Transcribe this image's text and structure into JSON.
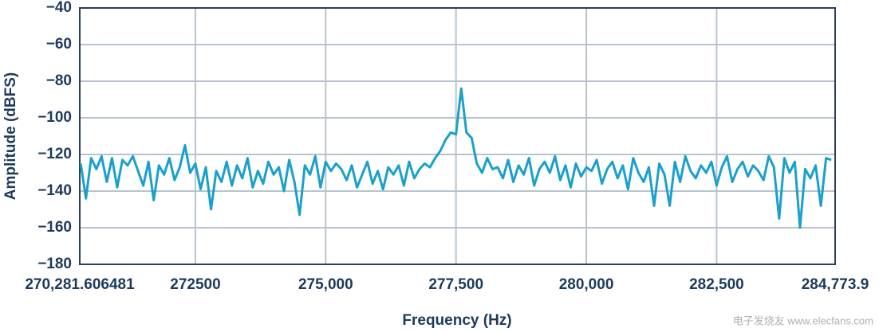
{
  "chart_data": {
    "type": "line",
    "x_label": "Frequency (Hz)",
    "y_label": "Amplitude (dBFS)",
    "watermark": "电子发烧友 www.elecfans.com",
    "xlim": [
      270281.606481,
      284773.9
    ],
    "xticks": [
      {
        "value": 270281.606481,
        "label": "270,281.606481"
      },
      272500,
      {
        "value": 275000,
        "label": "275,000"
      },
      {
        "value": 277500,
        "label": "277,500"
      },
      {
        "value": 280000,
        "label": "280,000"
      },
      {
        "value": 282500,
        "label": "282,500"
      },
      {
        "value": 284773.9,
        "label": "284,773.9"
      }
    ],
    "ylim": [
      -180,
      -40
    ],
    "yticks": [
      {
        "value": -180,
        "label": "−180"
      },
      {
        "value": -160,
        "label": "−160"
      },
      {
        "value": -140,
        "label": "−140"
      },
      {
        "value": -120,
        "label": "−120"
      },
      {
        "value": -100,
        "label": "−100"
      },
      {
        "value": -80,
        "label": "−80"
      },
      {
        "value": -60,
        "label": "−60"
      },
      {
        "value": -40,
        "label": "−40"
      }
    ],
    "grid": true,
    "x": [
      270300,
      270400,
      270500,
      270600,
      270700,
      270800,
      270900,
      271000,
      271100,
      271200,
      271300,
      271400,
      271500,
      271600,
      271700,
      271800,
      271900,
      272000,
      272100,
      272200,
      272300,
      272400,
      272500,
      272600,
      272700,
      272800,
      272900,
      273000,
      273100,
      273200,
      273300,
      273400,
      273500,
      273600,
      273700,
      273800,
      273900,
      274000,
      274100,
      274200,
      274300,
      274400,
      274500,
      274600,
      274700,
      274800,
      274900,
      275000,
      275100,
      275200,
      275300,
      275400,
      275500,
      275600,
      275700,
      275800,
      275900,
      276000,
      276100,
      276200,
      276300,
      276400,
      276500,
      276600,
      276700,
      276800,
      276900,
      277000,
      277100,
      277200,
      277300,
      277400,
      277500,
      277600,
      277700,
      277800,
      277900,
      278000,
      278100,
      278200,
      278300,
      278400,
      278500,
      278600,
      278700,
      278800,
      278900,
      279000,
      279100,
      279200,
      279300,
      279400,
      279500,
      279600,
      279700,
      279800,
      279900,
      280000,
      280100,
      280200,
      280300,
      280400,
      280500,
      280600,
      280700,
      280800,
      280900,
      281000,
      281100,
      281200,
      281300,
      281400,
      281500,
      281600,
      281700,
      281800,
      281900,
      282000,
      282100,
      282200,
      282300,
      282400,
      282500,
      282600,
      282700,
      282800,
      282900,
      283000,
      283100,
      283200,
      283300,
      283400,
      283500,
      283600,
      283700,
      283800,
      283900,
      284000,
      284100,
      284200,
      284300,
      284400,
      284500,
      284600,
      284700
    ],
    "series": [
      {
        "name": "Amplitude",
        "color": "#1aa0cb",
        "values": [
          -125,
          -144,
          -122,
          -128,
          -121,
          -135,
          -122,
          -138,
          -123,
          -126,
          -121,
          -129,
          -137,
          -124,
          -145,
          -126,
          -131,
          -122,
          -134,
          -127,
          -115,
          -130,
          -125,
          -139,
          -127,
          -150,
          -129,
          -135,
          -124,
          -137,
          -126,
          -133,
          -122,
          -138,
          -129,
          -136,
          -124,
          -131,
          -127,
          -140,
          -123,
          -135,
          -153,
          -126,
          -131,
          -121,
          -138,
          -124,
          -129,
          -125,
          -128,
          -134,
          -126,
          -138,
          -131,
          -124,
          -136,
          -129,
          -139,
          -127,
          -131,
          -126,
          -137,
          -124,
          -133,
          -128,
          -125,
          -127,
          -122,
          -118,
          -112,
          -108,
          -109,
          -84,
          -108,
          -111,
          -125,
          -130,
          -122,
          -128,
          -127,
          -133,
          -123,
          -135,
          -126,
          -131,
          -122,
          -137,
          -128,
          -124,
          -130,
          -121,
          -134,
          -126,
          -138,
          -125,
          -132,
          -127,
          -129,
          -123,
          -136,
          -128,
          -124,
          -133,
          -126,
          -139,
          -122,
          -130,
          -135,
          -127,
          -148,
          -125,
          -131,
          -148,
          -124,
          -135,
          -121,
          -129,
          -133,
          -126,
          -130,
          -124,
          -137,
          -127,
          -121,
          -135,
          -128,
          -124,
          -132,
          -126,
          -129,
          -134,
          -121,
          -127,
          -155,
          -122,
          -130,
          -124,
          -160,
          -128,
          -133,
          -126,
          -148,
          -122,
          -123
        ]
      }
    ]
  }
}
